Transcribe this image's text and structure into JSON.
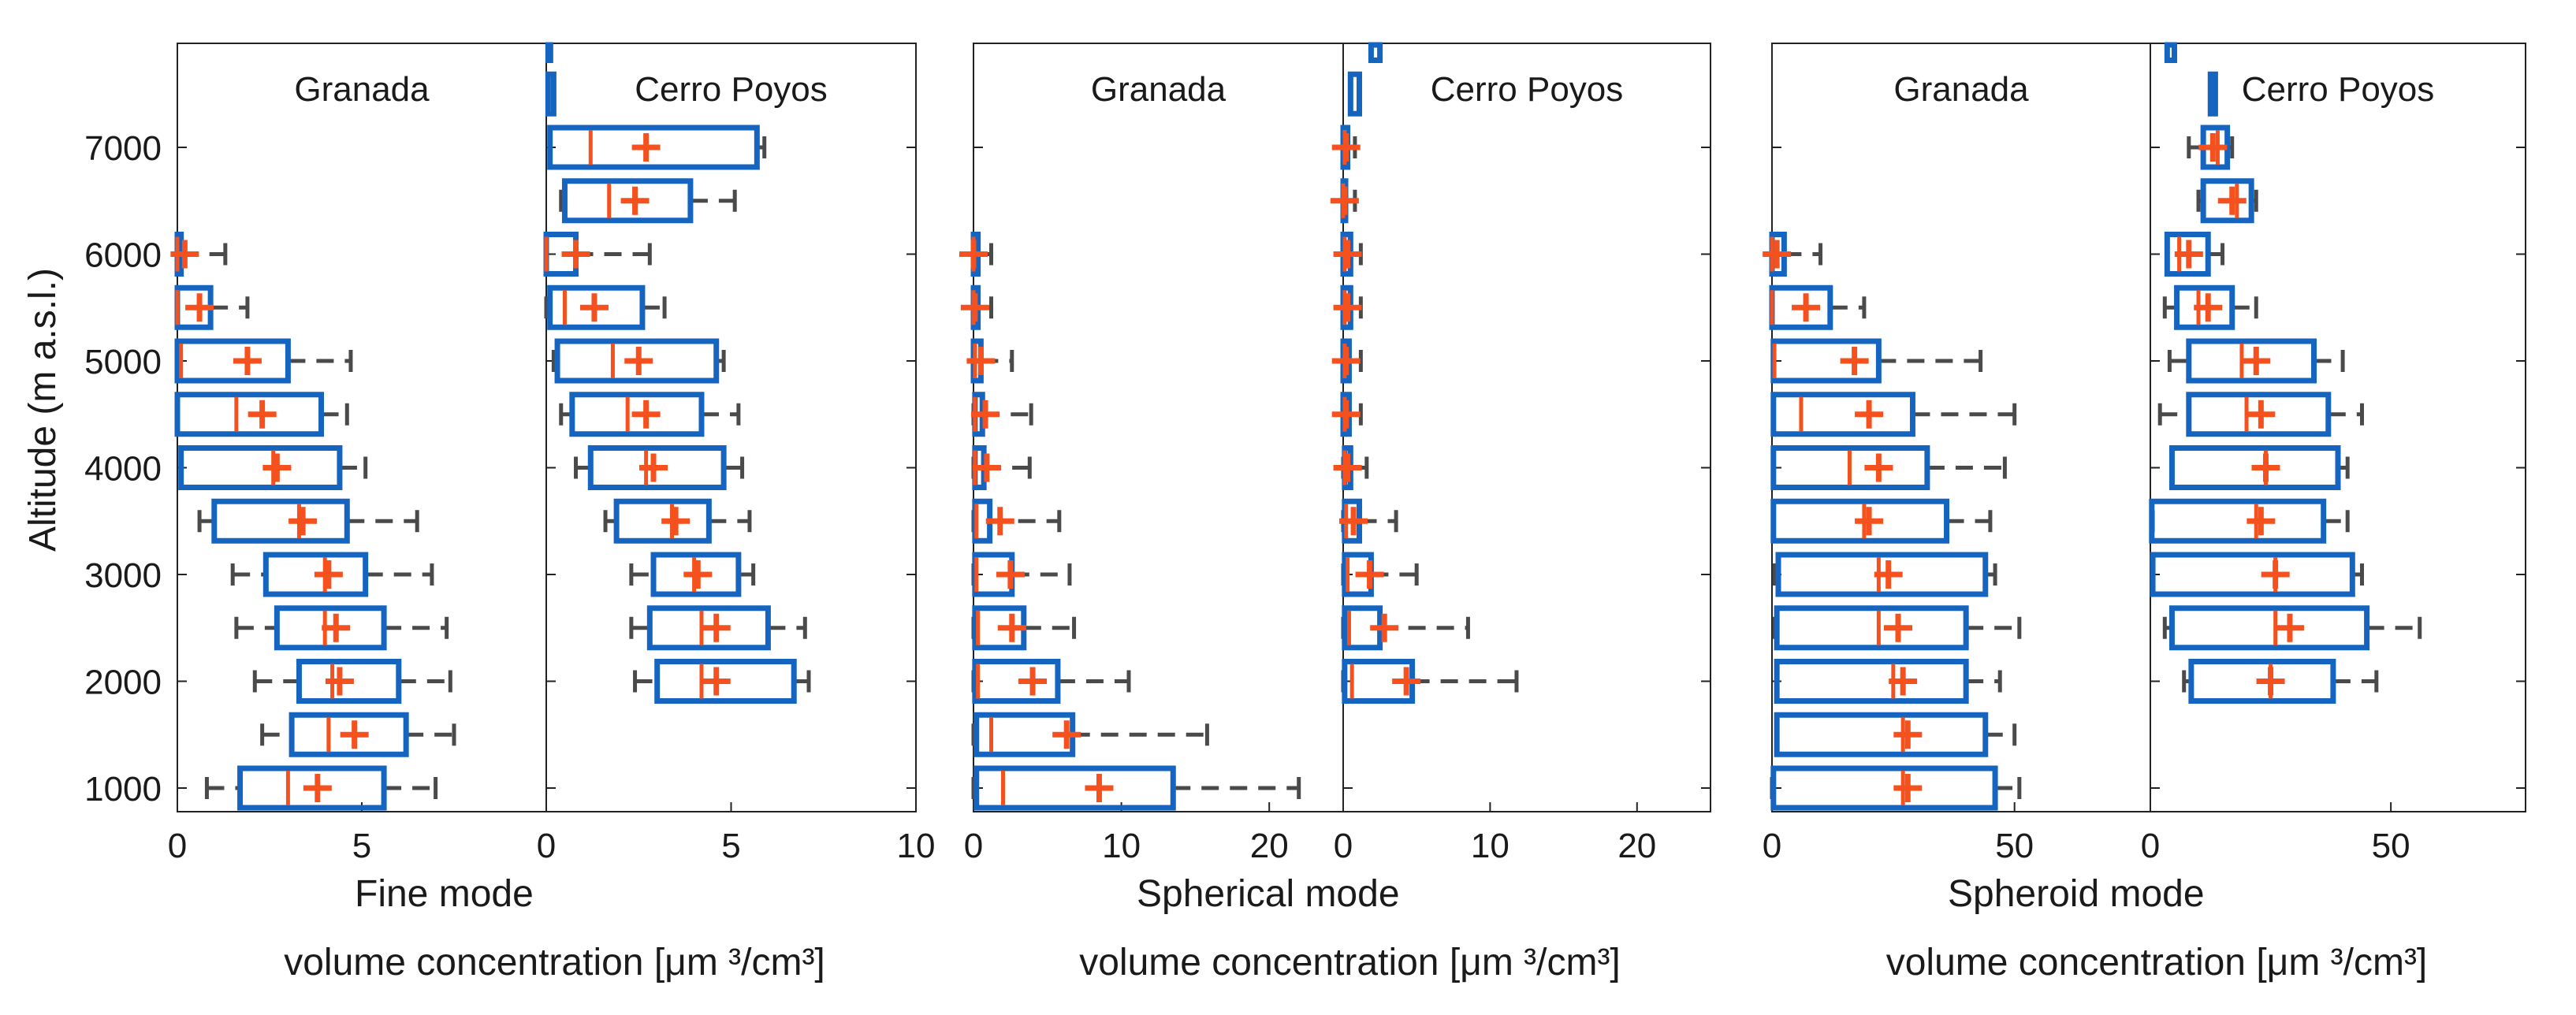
{
  "figure": {
    "ylabel": "Altitude (m a.s.l.)",
    "altitude_ticks": [
      1000,
      2000,
      3000,
      4000,
      5000,
      6000,
      7000
    ],
    "colors": {
      "box": "#1565c0",
      "median": "#f4511e",
      "mean": "#f4511e",
      "whisker": "#4a4a4a",
      "frame": "#222222"
    }
  },
  "chart_data": [
    {
      "type": "box",
      "orientation": "horizontal",
      "group_label": "Fine mode",
      "unit_label": "volume concentration [μm ³/cm³]",
      "xlim": [
        0,
        10
      ],
      "x_ticks": [
        0,
        5,
        10
      ],
      "x_tick_labels_left": [
        "0",
        "5"
      ],
      "x_tick_labels_right": [
        "0",
        "5",
        "10"
      ],
      "panels": [
        {
          "site": "Granada",
          "boxes": [
            {
              "alt": 1000,
              "wl": 0.8,
              "q1": 1.7,
              "med": 3.0,
              "mean": 3.8,
              "q3": 5.6,
              "wh": 7.0
            },
            {
              "alt": 1500,
              "wl": 2.3,
              "q1": 3.1,
              "med": 4.1,
              "mean": 4.8,
              "q3": 6.2,
              "wh": 7.5
            },
            {
              "alt": 2000,
              "wl": 2.1,
              "q1": 3.3,
              "med": 4.2,
              "mean": 4.4,
              "q3": 6.0,
              "wh": 7.4
            },
            {
              "alt": 2500,
              "wl": 1.6,
              "q1": 2.7,
              "med": 4.0,
              "mean": 4.3,
              "q3": 5.6,
              "wh": 7.3
            },
            {
              "alt": 3000,
              "wl": 1.5,
              "q1": 2.4,
              "med": 4.0,
              "mean": 4.1,
              "q3": 5.1,
              "wh": 6.9
            },
            {
              "alt": 3500,
              "wl": 0.6,
              "q1": 1.0,
              "med": 3.3,
              "mean": 3.4,
              "q3": 4.6,
              "wh": 6.5
            },
            {
              "alt": 4000,
              "wl": 0.1,
              "q1": 0.1,
              "med": 2.6,
              "mean": 2.7,
              "q3": 4.4,
              "wh": 5.1
            },
            {
              "alt": 4500,
              "wl": 0.0,
              "q1": 0.0,
              "med": 1.6,
              "mean": 2.3,
              "q3": 3.9,
              "wh": 4.6
            },
            {
              "alt": 5000,
              "wl": 0.0,
              "q1": 0.0,
              "med": 0.1,
              "mean": 1.9,
              "q3": 3.0,
              "wh": 4.7
            },
            {
              "alt": 5500,
              "wl": 0.0,
              "q1": 0.0,
              "med": 0.0,
              "mean": 0.6,
              "q3": 0.9,
              "wh": 1.9
            },
            {
              "alt": 6000,
              "wl": 0.0,
              "q1": 0.0,
              "med": 0.0,
              "mean": 0.2,
              "q3": 0.1,
              "wh": 1.3
            }
          ]
        },
        {
          "site": "Cerro Poyos",
          "boxes": [
            {
              "alt": 2000,
              "wl": 2.4,
              "q1": 3.0,
              "med": 4.2,
              "mean": 4.6,
              "q3": 6.7,
              "wh": 7.1
            },
            {
              "alt": 2500,
              "wl": 2.3,
              "q1": 2.8,
              "med": 4.2,
              "mean": 4.6,
              "q3": 6.0,
              "wh": 7.0
            },
            {
              "alt": 3000,
              "wl": 2.3,
              "q1": 2.9,
              "med": 4.0,
              "mean": 4.1,
              "q3": 5.2,
              "wh": 5.6
            },
            {
              "alt": 3500,
              "wl": 1.6,
              "q1": 1.9,
              "med": 3.4,
              "mean": 3.5,
              "q3": 4.4,
              "wh": 5.5
            },
            {
              "alt": 4000,
              "wl": 0.8,
              "q1": 1.2,
              "med": 2.7,
              "mean": 2.9,
              "q3": 4.8,
              "wh": 5.3
            },
            {
              "alt": 4500,
              "wl": 0.4,
              "q1": 0.7,
              "med": 2.2,
              "mean": 2.7,
              "q3": 4.2,
              "wh": 5.2
            },
            {
              "alt": 5000,
              "wl": 0.2,
              "q1": 0.3,
              "med": 1.8,
              "mean": 2.5,
              "q3": 4.6,
              "wh": 4.8
            },
            {
              "alt": 5500,
              "wl": 0.0,
              "q1": 0.1,
              "med": 0.5,
              "mean": 1.3,
              "q3": 2.6,
              "wh": 3.2
            },
            {
              "alt": 6000,
              "wl": 0.0,
              "q1": 0.0,
              "med": 0.0,
              "mean": 0.8,
              "q3": 0.8,
              "wh": 2.8
            },
            {
              "alt": 6500,
              "wl": 0.4,
              "q1": 0.5,
              "med": 1.7,
              "mean": 2.4,
              "q3": 3.9,
              "wh": 5.1
            },
            {
              "alt": 7000,
              "wl": 0.1,
              "q1": 0.1,
              "med": 1.2,
              "mean": 2.7,
              "q3": 5.7,
              "wh": 5.9
            },
            {
              "alt": 7500,
              "wl": 0.05,
              "q1": 0.05,
              "med": 0.1,
              "mean": null,
              "q3": 0.2,
              "wh": 0.2
            },
            {
              "alt": 8000,
              "wl": 0.05,
              "q1": 0.05,
              "med": 0.05,
              "mean": null,
              "q3": 0.1,
              "wh": 0.1
            }
          ]
        }
      ]
    },
    {
      "type": "box",
      "orientation": "horizontal",
      "group_label": "Spherical mode",
      "unit_label": "volume concentration [μm ³/cm³]",
      "xlim": [
        0,
        25
      ],
      "x_ticks": [
        0,
        10,
        20
      ],
      "x_tick_labels_left": [
        "0",
        "10",
        "20"
      ],
      "x_tick_labels_right": [
        "0",
        "10",
        "20"
      ],
      "panels": [
        {
          "site": "Granada",
          "boxes": [
            {
              "alt": 1000,
              "wl": 0.0,
              "q1": 0.2,
              "med": 2.0,
              "mean": 8.5,
              "q3": 13.5,
              "wh": 22.0
            },
            {
              "alt": 1500,
              "wl": 0.0,
              "q1": 0.2,
              "med": 1.2,
              "mean": 6.3,
              "q3": 6.7,
              "wh": 15.8
            },
            {
              "alt": 2000,
              "wl": 0.0,
              "q1": 0.1,
              "med": 0.3,
              "mean": 4.0,
              "q3": 5.7,
              "wh": 10.5
            },
            {
              "alt": 2500,
              "wl": 0.0,
              "q1": 0.1,
              "med": 0.3,
              "mean": 2.6,
              "q3": 3.4,
              "wh": 6.8
            },
            {
              "alt": 3000,
              "wl": 0.0,
              "q1": 0.1,
              "med": 0.2,
              "mean": 2.5,
              "q3": 2.6,
              "wh": 6.5
            },
            {
              "alt": 3500,
              "wl": 0.0,
              "q1": 0.1,
              "med": 0.2,
              "mean": 1.8,
              "q3": 1.1,
              "wh": 5.8
            },
            {
              "alt": 4000,
              "wl": 0.0,
              "q1": 0.1,
              "med": 0.1,
              "mean": 0.9,
              "q3": 0.7,
              "wh": 3.8
            },
            {
              "alt": 4500,
              "wl": 0.0,
              "q1": 0.1,
              "med": 0.1,
              "mean": 0.8,
              "q3": 0.6,
              "wh": 3.9
            },
            {
              "alt": 5000,
              "wl": 0.0,
              "q1": 0.0,
              "med": 0.1,
              "mean": 0.5,
              "q3": 0.5,
              "wh": 2.6
            },
            {
              "alt": 5500,
              "wl": 0.0,
              "q1": 0.0,
              "med": 0.0,
              "mean": 0.1,
              "q3": 0.3,
              "wh": 1.2
            },
            {
              "alt": 6000,
              "wl": 0.0,
              "q1": 0.0,
              "med": 0.0,
              "mean": 0.0,
              "q3": 0.3,
              "wh": 1.2
            }
          ]
        },
        {
          "site": "Cerro Poyos",
          "boxes": [
            {
              "alt": 2000,
              "wl": 0.0,
              "q1": 0.1,
              "med": 0.6,
              "mean": 4.3,
              "q3": 4.7,
              "wh": 11.8
            },
            {
              "alt": 2500,
              "wl": 0.0,
              "q1": 0.1,
              "med": 0.4,
              "mean": 2.8,
              "q3": 2.5,
              "wh": 8.5
            },
            {
              "alt": 3000,
              "wl": 0.0,
              "q1": 0.1,
              "med": 0.3,
              "mean": 1.8,
              "q3": 1.9,
              "wh": 5.0
            },
            {
              "alt": 3500,
              "wl": 0.0,
              "q1": 0.1,
              "med": 0.2,
              "mean": 0.7,
              "q3": 1.1,
              "wh": 3.6
            },
            {
              "alt": 4000,
              "wl": 0.0,
              "q1": 0.1,
              "med": 0.1,
              "mean": 0.3,
              "q3": 0.5,
              "wh": 1.6
            },
            {
              "alt": 4500,
              "wl": 0.0,
              "q1": 0.0,
              "med": 0.1,
              "mean": 0.2,
              "q3": 0.4,
              "wh": 1.2
            },
            {
              "alt": 5000,
              "wl": 0.0,
              "q1": 0.0,
              "med": 0.1,
              "mean": 0.2,
              "q3": 0.4,
              "wh": 1.2
            },
            {
              "alt": 5500,
              "wl": 0.0,
              "q1": 0.0,
              "med": 0.1,
              "mean": 0.3,
              "q3": 0.5,
              "wh": 1.2
            },
            {
              "alt": 6000,
              "wl": 0.0,
              "q1": 0.0,
              "med": 0.1,
              "mean": 0.3,
              "q3": 0.5,
              "wh": 1.2
            },
            {
              "alt": 6500,
              "wl": 0.0,
              "q1": 0.0,
              "med": 0.0,
              "mean": 0.1,
              "q3": 0.1,
              "wh": 0.8
            },
            {
              "alt": 7000,
              "wl": 0.0,
              "q1": 0.0,
              "med": 0.1,
              "mean": 0.2,
              "q3": 0.3,
              "wh": 0.8
            },
            {
              "alt": 7500,
              "wl": 0.5,
              "q1": 0.5,
              "med": 0.7,
              "mean": null,
              "q3": 1.1,
              "wh": 1.1
            },
            {
              "alt": 8000,
              "wl": 1.9,
              "q1": 1.9,
              "med": 2.1,
              "mean": null,
              "q3": 2.5,
              "wh": 2.5
            }
          ]
        }
      ]
    },
    {
      "type": "box",
      "orientation": "horizontal",
      "group_label": "Spheroid mode",
      "unit_label": "volume concentration [μm ³/cm³]",
      "xlim": [
        0,
        78
      ],
      "x_ticks": [
        0,
        50
      ],
      "x_tick_labels_left": [
        "0",
        "50"
      ],
      "x_tick_labels_right": [
        "0",
        "50"
      ],
      "panels": [
        {
          "site": "Granada",
          "boxes": [
            {
              "alt": 1000,
              "wl": 0.0,
              "q1": 0.3,
              "med": 27,
              "mean": 28,
              "q3": 46,
              "wh": 51
            },
            {
              "alt": 1500,
              "wl": 1,
              "q1": 1,
              "med": 27,
              "mean": 28,
              "q3": 44,
              "wh": 50
            },
            {
              "alt": 2000,
              "wl": 1,
              "q1": 1,
              "med": 25,
              "mean": 27,
              "q3": 40,
              "wh": 47
            },
            {
              "alt": 2500,
              "wl": 0.5,
              "q1": 1,
              "med": 22,
              "mean": 26,
              "q3": 40,
              "wh": 51
            },
            {
              "alt": 3000,
              "wl": 0.5,
              "q1": 1.3,
              "med": 22,
              "mean": 24,
              "q3": 44,
              "wh": 46
            },
            {
              "alt": 3500,
              "wl": 0.3,
              "q1": 0.3,
              "med": 19,
              "mean": 20,
              "q3": 36,
              "wh": 45
            },
            {
              "alt": 4000,
              "wl": 0.3,
              "q1": 0.3,
              "med": 16,
              "mean": 22,
              "q3": 32,
              "wh": 48
            },
            {
              "alt": 4500,
              "wl": 0.3,
              "q1": 0.3,
              "med": 6,
              "mean": 20,
              "q3": 29,
              "wh": 50
            },
            {
              "alt": 5000,
              "wl": 0.3,
              "q1": 0.3,
              "med": 0.5,
              "mean": 17,
              "q3": 22,
              "wh": 43
            },
            {
              "alt": 5500,
              "wl": 0.0,
              "q1": 0.0,
              "med": 0.0,
              "mean": 7,
              "q3": 12,
              "wh": 19
            },
            {
              "alt": 6000,
              "wl": 0.0,
              "q1": 0.0,
              "med": 0.0,
              "mean": 1,
              "q3": 2.5,
              "wh": 10
            }
          ]
        },
        {
          "site": "Cerro Poyos",
          "boxes": [
            {
              "alt": 2000,
              "wl": 7,
              "q1": 8.5,
              "med": 25,
              "mean": 25,
              "q3": 38,
              "wh": 47
            },
            {
              "alt": 2500,
              "wl": 3,
              "q1": 4.5,
              "med": 26,
              "mean": 29,
              "q3": 45,
              "wh": 56
            },
            {
              "alt": 3000,
              "wl": 0.5,
              "q1": 0.5,
              "med": 26,
              "mean": 26,
              "q3": 42,
              "wh": 44
            },
            {
              "alt": 3500,
              "wl": 0.5,
              "q1": 0.3,
              "med": 22,
              "mean": 23,
              "q3": 36,
              "wh": 41
            },
            {
              "alt": 4000,
              "wl": 4.5,
              "q1": 4.5,
              "med": 24,
              "mean": 24,
              "q3": 39,
              "wh": 41
            },
            {
              "alt": 4500,
              "wl": 2,
              "q1": 8,
              "med": 20,
              "mean": 23,
              "q3": 37,
              "wh": 44
            },
            {
              "alt": 5000,
              "wl": 4,
              "q1": 8,
              "med": 19,
              "mean": 22,
              "q3": 34,
              "wh": 40
            },
            {
              "alt": 5500,
              "wl": 3,
              "q1": 5.5,
              "med": 10,
              "mean": 12,
              "q3": 17,
              "wh": 22
            },
            {
              "alt": 6000,
              "wl": 3.5,
              "q1": 3.5,
              "med": 6,
              "mean": 8,
              "q3": 12,
              "wh": 15
            },
            {
              "alt": 6500,
              "wl": 10,
              "q1": 11,
              "med": 18,
              "mean": 17,
              "q3": 21,
              "wh": 22
            },
            {
              "alt": 7000,
              "wl": 8,
              "q1": 11,
              "med": 14,
              "mean": 13,
              "q3": 16,
              "wh": 17
            },
            {
              "alt": 7500,
              "wl": 12.5,
              "q1": 12.5,
              "med": 13,
              "mean": null,
              "q3": 13.5,
              "wh": 13.5
            },
            {
              "alt": 8000,
              "wl": 3.5,
              "q1": 3.5,
              "med": 4,
              "mean": null,
              "q3": 5,
              "wh": 5
            }
          ]
        }
      ]
    }
  ]
}
